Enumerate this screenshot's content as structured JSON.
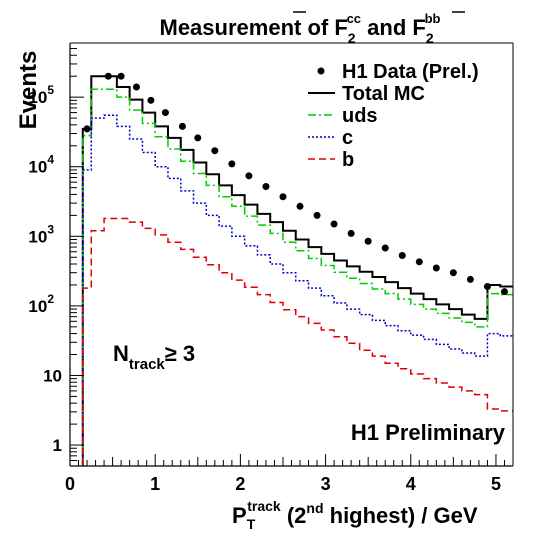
{
  "chart_data": {
    "type": "step-histogram",
    "title": {
      "prefix": "Measurement of F",
      "sub1": "2",
      "sup1": "cc",
      "middle": " and F",
      "sub2": "2",
      "sup2": "bb"
    },
    "ylabel": "Events",
    "xlabel": {
      "p": "P",
      "p_sub": "T",
      "p_sup": "track",
      "paren_open": " (2",
      "nd": "nd",
      "rest": " highest)  / GeV"
    },
    "x_range": [
      0,
      5.2
    ],
    "y_range": [
      0.5,
      600000
    ],
    "y_scale": "log",
    "x_ticks": [
      "0",
      "1",
      "2",
      "3",
      "4",
      "5"
    ],
    "x_tick_values": [
      0,
      1,
      2,
      3,
      4,
      5
    ],
    "y_ticks": [
      {
        "value": 1,
        "base": "1",
        "exp": ""
      },
      {
        "value": 10,
        "base": "10",
        "exp": ""
      },
      {
        "value": 100,
        "base": "10",
        "exp": "2"
      },
      {
        "value": 1000,
        "base": "10",
        "exp": "3"
      },
      {
        "value": 10000,
        "base": "10",
        "exp": "4"
      },
      {
        "value": 100000,
        "base": "10",
        "exp": "5"
      }
    ],
    "bin_edges": [
      0.15,
      0.25,
      0.4,
      0.55,
      0.7,
      0.85,
      1.0,
      1.15,
      1.3,
      1.45,
      1.6,
      1.75,
      1.9,
      2.05,
      2.2,
      2.35,
      2.5,
      2.65,
      2.8,
      2.95,
      3.1,
      3.25,
      3.4,
      3.55,
      3.7,
      3.85,
      4.0,
      4.15,
      4.3,
      4.45,
      4.6,
      4.75,
      4.9,
      5.05,
      5.2
    ],
    "data_points": {
      "x": [
        0.2,
        0.45,
        0.6,
        0.78,
        0.95,
        1.12,
        1.32,
        1.5,
        1.7,
        1.9,
        2.1,
        2.3,
        2.5,
        2.7,
        2.9,
        3.1,
        3.3,
        3.5,
        3.7,
        3.9,
        4.1,
        4.3,
        4.5,
        4.7,
        4.9,
        5.1
      ],
      "y": [
        35000,
        200000,
        200000,
        140000,
        90000,
        60000,
        38000,
        26000,
        17000,
        11000,
        7400,
        5200,
        3700,
        2700,
        2000,
        1500,
        1100,
        850,
        680,
        530,
        430,
        350,
        300,
        240,
        190,
        160
      ]
    },
    "series": [
      {
        "name": "Total MC",
        "color": "#000000",
        "dash": "solid",
        "values": [
          35000,
          200000,
          200000,
          140000,
          92000,
          60000,
          38000,
          26000,
          17500,
          11500,
          7800,
          5400,
          3900,
          2850,
          2100,
          1600,
          1200,
          900,
          700,
          560,
          450,
          370,
          310,
          260,
          220,
          180,
          150,
          125,
          105,
          90,
          75,
          65,
          200,
          190
        ]
      },
      {
        "name": "uds",
        "color": "#00cc00",
        "dash": "dash-dot",
        "values": [
          28000,
          130000,
          130000,
          100000,
          65000,
          42000,
          27000,
          18000,
          12000,
          8000,
          5400,
          3700,
          2700,
          1950,
          1450,
          1100,
          820,
          620,
          480,
          380,
          305,
          250,
          210,
          175,
          150,
          125,
          105,
          90,
          78,
          67,
          58,
          50,
          150,
          145
        ]
      },
      {
        "name": "c",
        "color": "#0000cc",
        "dash": "dotted",
        "values": [
          9000,
          50000,
          55000,
          38000,
          25000,
          16000,
          10000,
          6800,
          4500,
          3000,
          2000,
          1400,
          1000,
          730,
          540,
          400,
          300,
          230,
          180,
          140,
          110,
          90,
          75,
          62,
          52,
          44,
          38,
          33,
          28,
          24,
          21,
          19,
          40,
          37
        ]
      },
      {
        "name": "b",
        "color": "#dd0000",
        "dash": "dashed",
        "values": [
          180,
          1200,
          1800,
          1800,
          1600,
          1300,
          1050,
          820,
          650,
          500,
          390,
          300,
          235,
          185,
          145,
          112,
          88,
          70,
          56,
          45,
          36,
          29,
          23,
          19,
          15,
          12.5,
          10.5,
          9,
          7.8,
          6.8,
          6,
          5.3,
          3.3,
          3.1
        ]
      }
    ],
    "legend": {
      "data_label": "H1 Data (Prel.)",
      "items": [
        "Total MC",
        "uds",
        "c",
        "b"
      ],
      "position": "top-right"
    },
    "annotations": {
      "ntrack_main": "N",
      "ntrack_sub": "track",
      "ntrack_cond": "≥ 3",
      "preliminary": "H1 Preliminary"
    }
  }
}
